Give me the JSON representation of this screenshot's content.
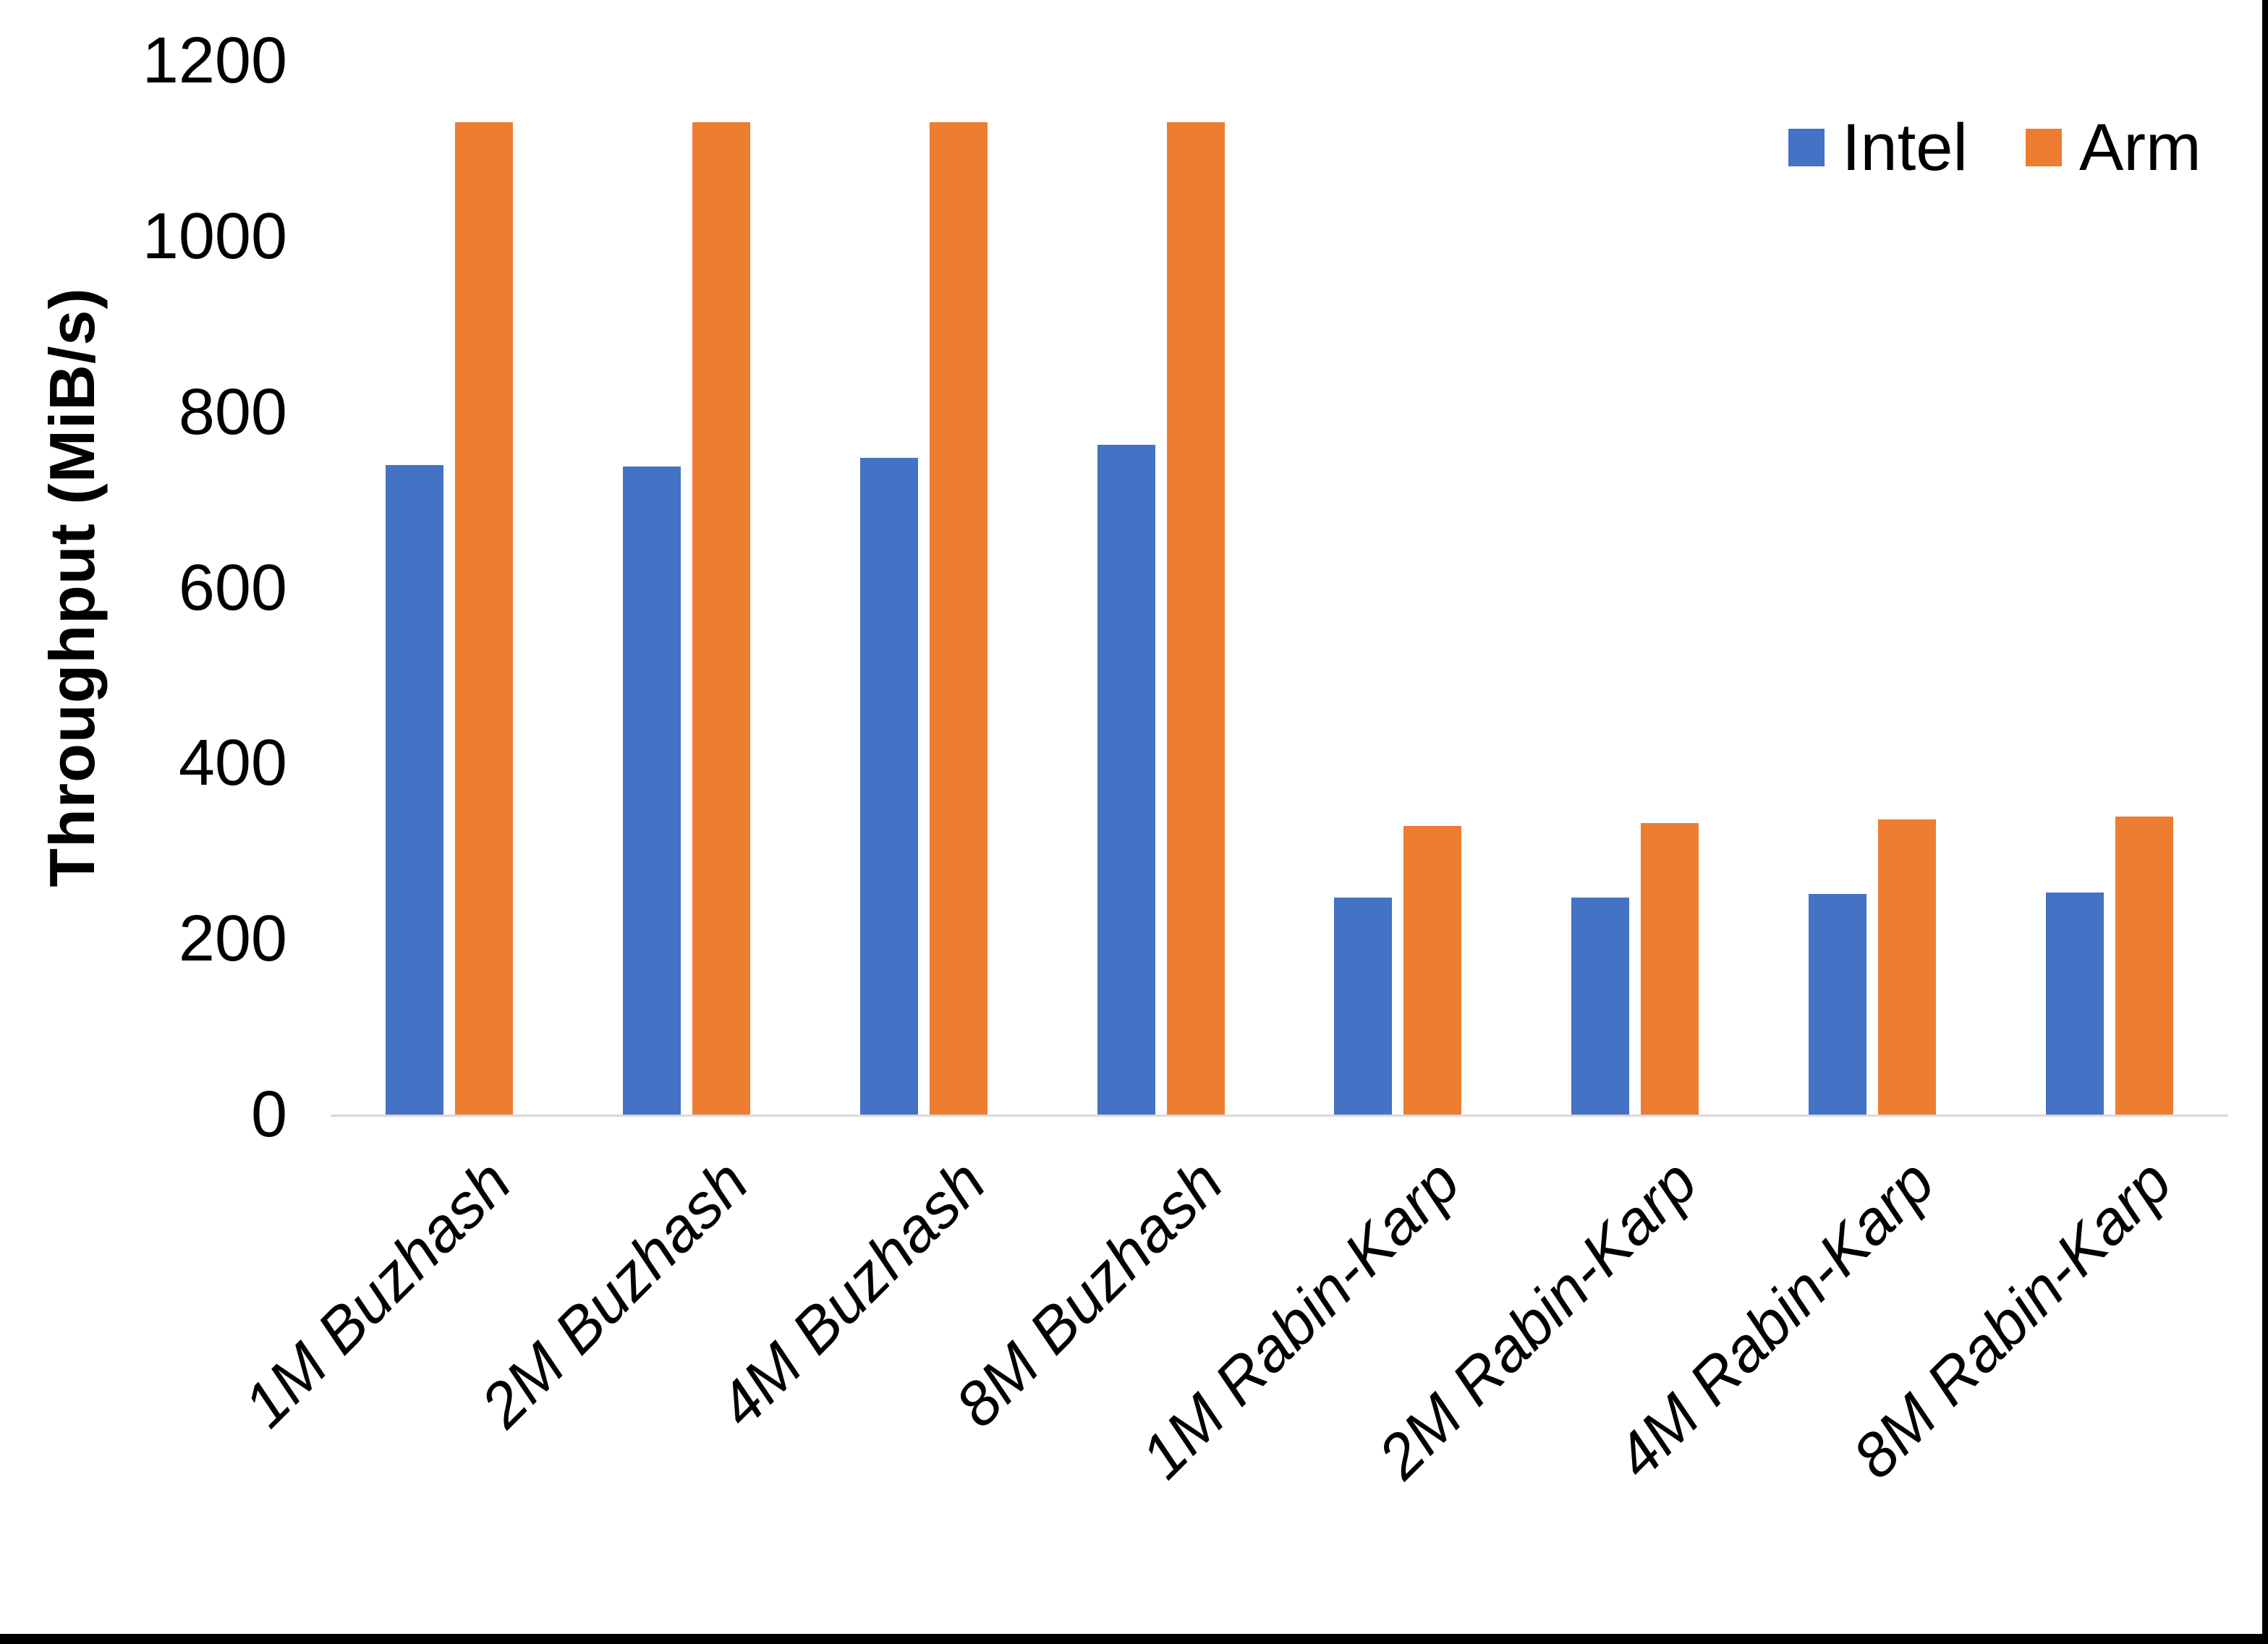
{
  "chart_data": {
    "type": "bar",
    "title": "",
    "ylabel": "Throughput (MiB/s)",
    "xlabel": "",
    "ylim": [
      0,
      1200
    ],
    "yticks": [
      0,
      200,
      400,
      600,
      800,
      1000,
      1200
    ],
    "grid": false,
    "legend_position": "top-right",
    "categories": [
      "1M Buzhash",
      "2M Buzhash",
      "4M Buzhash",
      "8M Buzhash",
      "1M Rabin-Karp",
      "2M Rabin-Karp",
      "4M Rabin-Karp",
      "8M Rabin-Karp"
    ],
    "series": [
      {
        "name": "Intel",
        "color": "#4472C4",
        "values": [
          740,
          738,
          748,
          763,
          247,
          247,
          251,
          253
        ]
      },
      {
        "name": "Arm",
        "color": "#ED7D31",
        "values": [
          1130,
          1130,
          1130,
          1130,
          329,
          332,
          336,
          339
        ]
      }
    ],
    "colors": {
      "axis_line": "#D9D9D9",
      "text": "#000000",
      "background": "#FFFFFF",
      "screen_border": "#000000"
    }
  }
}
